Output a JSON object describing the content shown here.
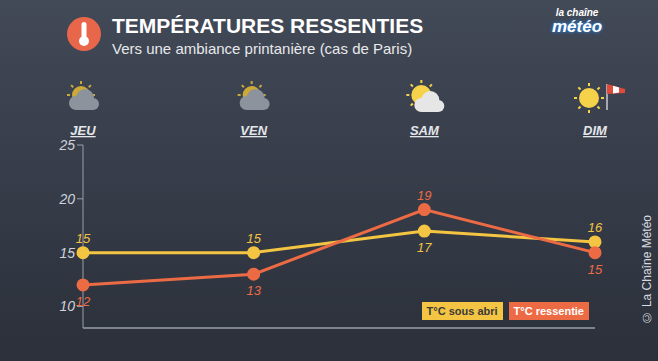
{
  "chart_data": {
    "type": "line",
    "title": "TEMPÉRATURES RESSENTIES",
    "subtitle": "Vers une ambiance printanière (cas de Paris)",
    "logo": [
      "la chaîne",
      "météo"
    ],
    "credit": "© La Chaîne Météo",
    "categories": [
      "JEU",
      "VEN",
      "SAM",
      "DIM"
    ],
    "series": [
      {
        "name": "T°C sous abri",
        "color": "#f4c542",
        "values": [
          15,
          15,
          17,
          16
        ]
      },
      {
        "name": "T°C ressentie",
        "color": "#ec6b45",
        "values": [
          12,
          13,
          19,
          15
        ]
      }
    ],
    "ylim": [
      8,
      25
    ],
    "yticks": [
      10,
      15,
      20,
      25
    ],
    "grid": false,
    "legend": "lower right",
    "data_labels": true,
    "marker": "circle"
  }
}
